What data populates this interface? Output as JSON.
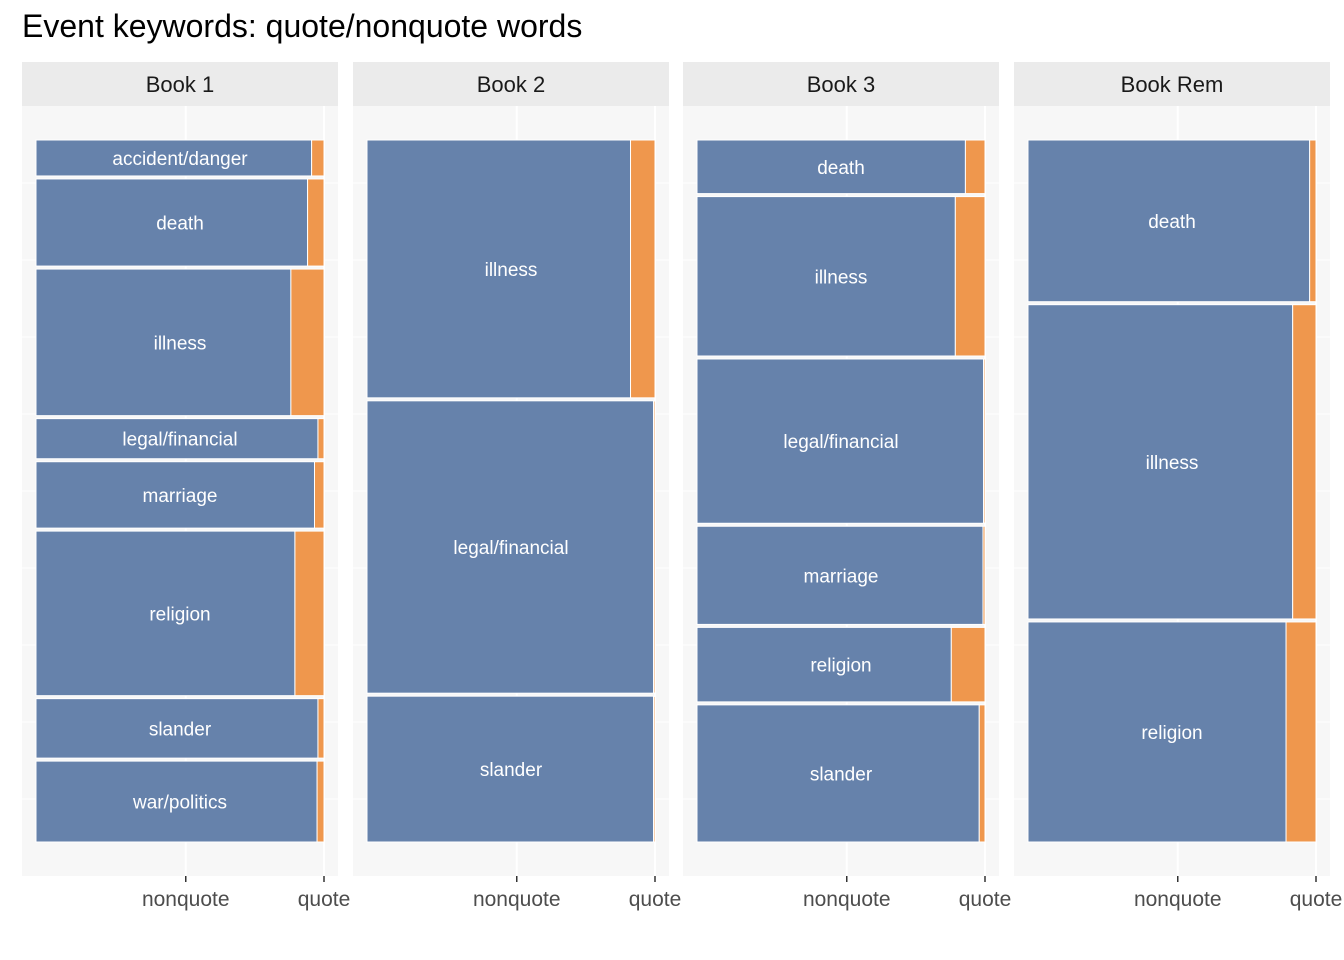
{
  "chart_data": {
    "type": "mosaic",
    "title": "Event keywords: quote/nonquote words",
    "x_categories": [
      "nonquote",
      "quote"
    ],
    "colors": {
      "nonquote": "#6682ab",
      "quote": "#ef974d"
    },
    "panels": [
      {
        "label": "Book 1",
        "segments": [
          {
            "keyword": "accident/danger",
            "share": 0.052,
            "quote_fraction": 0.043
          },
          {
            "keyword": "death",
            "share": 0.126,
            "quote_fraction": 0.057
          },
          {
            "keyword": "illness",
            "share": 0.212,
            "quote_fraction": 0.115
          },
          {
            "keyword": "legal/financial",
            "share": 0.058,
            "quote_fraction": 0.021
          },
          {
            "keyword": "marriage",
            "share": 0.096,
            "quote_fraction": 0.033
          },
          {
            "keyword": "religion",
            "share": 0.238,
            "quote_fraction": 0.101
          },
          {
            "keyword": "slander",
            "share": 0.086,
            "quote_fraction": 0.021
          },
          {
            "keyword": "war/politics",
            "share": 0.117,
            "quote_fraction": 0.024
          }
        ]
      },
      {
        "label": "Book 2",
        "segments": [
          {
            "keyword": "illness",
            "share": 0.366,
            "quote_fraction": 0.085
          },
          {
            "keyword": "legal/financial",
            "share": 0.415,
            "quote_fraction": 0.005
          },
          {
            "keyword": "slander",
            "share": 0.207,
            "quote_fraction": 0.005
          }
        ]
      },
      {
        "label": "Book 3",
        "segments": [
          {
            "keyword": "death",
            "share": 0.077,
            "quote_fraction": 0.068
          },
          {
            "keyword": "illness",
            "share": 0.229,
            "quote_fraction": 0.103
          },
          {
            "keyword": "legal/financial",
            "share": 0.236,
            "quote_fraction": 0.005
          },
          {
            "keyword": "marriage",
            "share": 0.141,
            "quote_fraction": 0.007
          },
          {
            "keyword": "religion",
            "share": 0.107,
            "quote_fraction": 0.117
          },
          {
            "keyword": "slander",
            "share": 0.197,
            "quote_fraction": 0.02
          }
        ]
      },
      {
        "label": "Book Rem",
        "segments": [
          {
            "keyword": "death",
            "share": 0.23,
            "quote_fraction": 0.022
          },
          {
            "keyword": "illness",
            "share": 0.447,
            "quote_fraction": 0.081
          },
          {
            "keyword": "religion",
            "share": 0.313,
            "quote_fraction": 0.104
          }
        ]
      }
    ]
  }
}
